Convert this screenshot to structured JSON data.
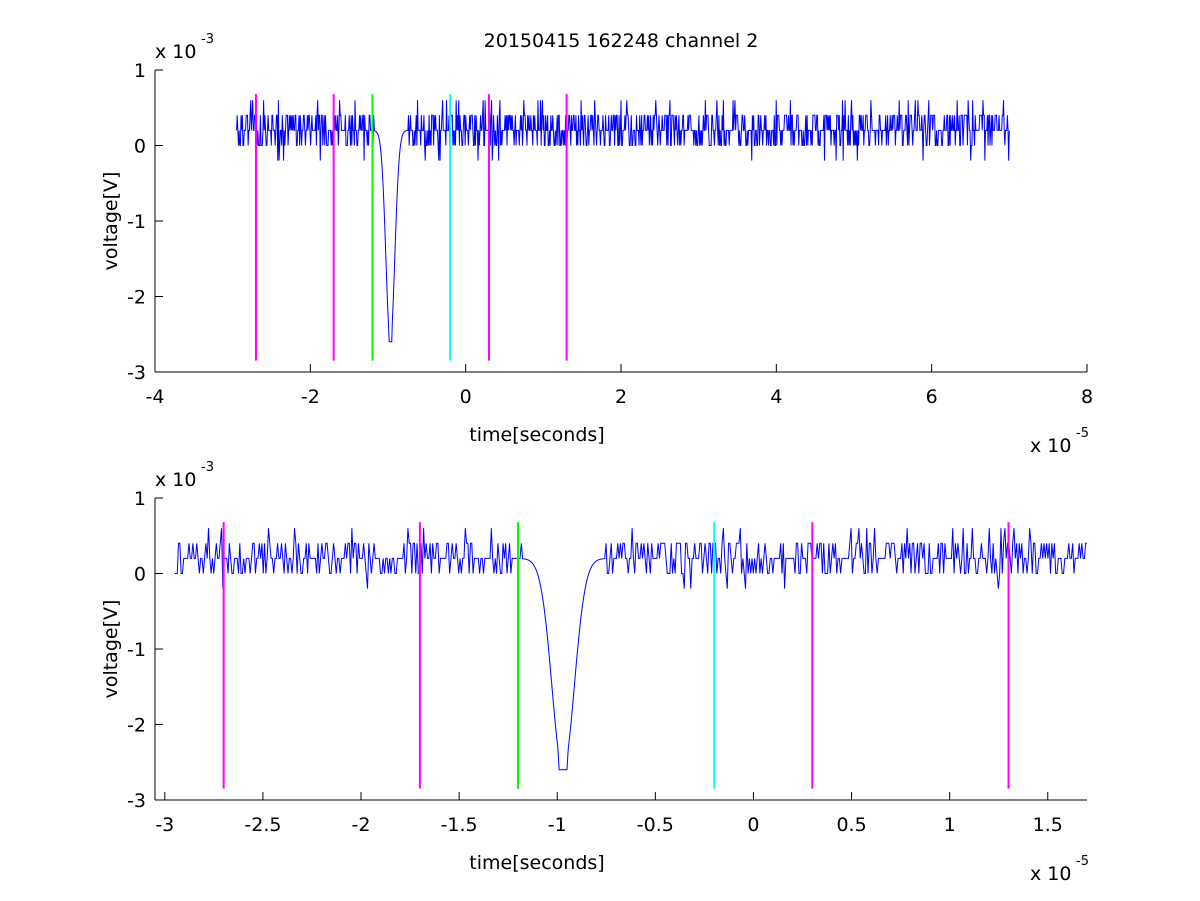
{
  "chart_data": [
    {
      "type": "line",
      "title": "20150415 162248 channel 2",
      "xlabel": "time[seconds]",
      "ylabel": "voltage[V]",
      "xlim": [
        -4e-05,
        8e-05
      ],
      "ylim": [
        -0.003,
        0.001
      ],
      "x_ticks": [
        -4e-05,
        -2e-05,
        0,
        2e-05,
        4e-05,
        6e-05,
        8e-05
      ],
      "x_tick_labels": [
        "-4",
        "-2",
        "0",
        "2",
        "4",
        "6",
        "8"
      ],
      "y_ticks": [
        -0.003,
        -0.002,
        -0.001,
        0,
        0.001
      ],
      "y_tick_labels": [
        "-3",
        "-2",
        "-1",
        "0",
        "1"
      ],
      "x_exponent": "x 10",
      "x_exponent_power": "-5",
      "y_exponent": "x 10",
      "y_exponent_power": "-3",
      "grid": false,
      "series": [
        {
          "color": "#0000ff",
          "x_range": [
            -2.95e-05,
            7e-05
          ],
          "baseline": 0.0002,
          "noise_levels": [
            0.0,
            0.0002,
            0.0004,
            0.0006
          ],
          "spike": {
            "x": -9.7e-06,
            "y_min": -0.0026
          }
        }
      ],
      "markers": [
        {
          "x": -2.7e-05,
          "color": "#ff00ff",
          "y_range": [
            -0.00285,
            0.00068
          ]
        },
        {
          "x": -1.7e-05,
          "color": "#ff00ff",
          "y_range": [
            -0.00285,
            0.00068
          ]
        },
        {
          "x": -1.2e-05,
          "color": "#00ff00",
          "y_range": [
            -0.00285,
            0.00068
          ]
        },
        {
          "x": -2e-06,
          "color": "#00ffff",
          "y_range": [
            -0.00285,
            0.00068
          ]
        },
        {
          "x": 3e-06,
          "color": "#ff00ff",
          "y_range": [
            -0.00285,
            0.00068
          ]
        },
        {
          "x": 1.3e-05,
          "color": "#ff00ff",
          "y_range": [
            -0.00285,
            0.00068
          ]
        }
      ]
    },
    {
      "type": "line",
      "title": "",
      "xlabel": "time[seconds]",
      "ylabel": "voltage[V]",
      "xlim": [
        -3.05e-05,
        1.7e-05
      ],
      "ylim": [
        -0.003,
        0.001
      ],
      "x_ticks": [
        -3e-05,
        -2.5e-05,
        -2e-05,
        -1.5e-05,
        -1e-05,
        -5e-06,
        0,
        5e-06,
        1e-05,
        1.5e-05
      ],
      "x_tick_labels": [
        "-3",
        "-2.5",
        "-2",
        "-1.5",
        "-1",
        "-0.5",
        "0",
        "0.5",
        "1",
        "1.5"
      ],
      "y_ticks": [
        -0.003,
        -0.002,
        -0.001,
        0,
        0.001
      ],
      "y_tick_labels": [
        "-3",
        "-2",
        "-1",
        "0",
        "1"
      ],
      "x_exponent": "x 10",
      "x_exponent_power": "-5",
      "y_exponent": "x 10",
      "y_exponent_power": "-3",
      "grid": false,
      "series": [
        {
          "color": "#0000ff",
          "x_range": [
            -2.95e-05,
            1.7e-05
          ],
          "baseline": 0.0002,
          "noise_levels": [
            0.0,
            0.0002,
            0.0004,
            0.0006
          ],
          "spike": {
            "x": -9.7e-06,
            "y_min": -0.0026
          }
        }
      ],
      "markers": [
        {
          "x": -2.7e-05,
          "color": "#ff00ff",
          "y_range": [
            -0.00285,
            0.00068
          ]
        },
        {
          "x": -1.7e-05,
          "color": "#ff00ff",
          "y_range": [
            -0.00285,
            0.00068
          ]
        },
        {
          "x": -1.2e-05,
          "color": "#00ff00",
          "y_range": [
            -0.00285,
            0.00068
          ]
        },
        {
          "x": -2e-06,
          "color": "#00ffff",
          "y_range": [
            -0.00285,
            0.00068
          ]
        },
        {
          "x": 3e-06,
          "color": "#ff00ff",
          "y_range": [
            -0.00285,
            0.00068
          ]
        },
        {
          "x": 1.3e-05,
          "color": "#ff00ff",
          "y_range": [
            -0.00285,
            0.00068
          ]
        }
      ]
    }
  ]
}
